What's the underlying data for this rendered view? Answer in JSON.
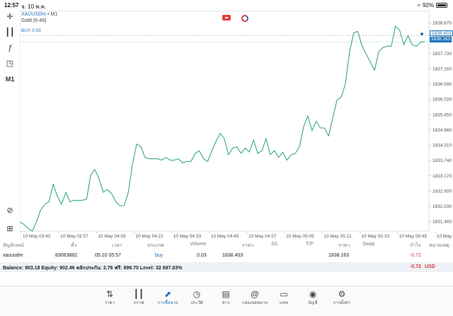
{
  "status": {
    "time": "12:57",
    "date": "จ. 10 พ.ค.",
    "battery": "92%"
  },
  "toolbar": {
    "period_label": "M1"
  },
  "chart_header": {
    "symbol": "XAUUSDm",
    "timeframe": "• M1",
    "subtitle": "Gold (6-49)"
  },
  "buy_line_label": "BUY 0.03",
  "price_tags": {
    "buy": "1838.403",
    "bid": "1838.163"
  },
  "chart_data": {
    "type": "line",
    "color": "#3aaa7a",
    "y_ticks": [
      "1838.870",
      "1838.403",
      "1837.730",
      "1837.160",
      "1836.590",
      "1836.020",
      "1835.450",
      "1834.880",
      "1834.310",
      "1833.740",
      "1833.170",
      "1832.600",
      "1832.030",
      "1831.460"
    ],
    "x_ticks": [
      "10 May 03:45",
      "10 May 03:57",
      "10 May 04:09",
      "10 May 04:21",
      "10 May 04:33",
      "10 May 04:45",
      "10 May 04:57",
      "10 May 05:09",
      "10 May 05:21",
      "10 May 05:33",
      "10 May 05:45",
      "10 May 05:57"
    ],
    "ylim": [
      1831.1,
      1839.3
    ],
    "values": [
      1831.45,
      1831.35,
      1831.2,
      1831.1,
      1831.45,
      1831.9,
      1832.1,
      1832.2,
      1832.85,
      1832.4,
      1832.1,
      1832.55,
      1832.2,
      1832.25,
      1832.25,
      1832.25,
      1832.3,
      1833.2,
      1833.4,
      1833.05,
      1832.55,
      1832.65,
      1832.5,
      1832.2,
      1832.05,
      1832.05,
      1832.55,
      1833.6,
      1834.35,
      1834.25,
      1833.85,
      1833.8,
      1833.8,
      1833.8,
      1833.75,
      1833.85,
      1833.75,
      1833.75,
      1833.8,
      1833.65,
      1833.7,
      1833.7,
      1834.0,
      1834.1,
      1833.8,
      1833.7,
      1834.1,
      1834.45,
      1834.75,
      1834.55,
      1833.95,
      1834.2,
      1834.25,
      1834.0,
      1834.2,
      1834.05,
      1834.5,
      1834.0,
      1834.1,
      1834.55,
      1833.95,
      1834.1,
      1833.85,
      1834.05,
      1833.75,
      1833.95,
      1834.0,
      1834.25,
      1835.0,
      1835.4,
      1834.85,
      1835.2,
      1834.95,
      1834.95,
      1834.65,
      1835.35,
      1836.0,
      1836.1,
      1836.6,
      1837.8,
      1838.5,
      1838.55,
      1838.0,
      1837.7,
      1837.4,
      1837.1,
      1837.8,
      1837.95,
      1838.0,
      1838.0,
      1838.75,
      1838.6,
      1838.05,
      1838.4,
      1838.05,
      1838.0,
      1838.15,
      1838.16
    ]
  },
  "table": {
    "headers": [
      "สัญลักษณ์",
      "ตั๋ว",
      "เวลา",
      "ประเภท",
      "Volume",
      "ราคา",
      "S/L",
      "T/P",
      "ราคา",
      "Swap",
      "กำไร",
      "หมายเหตุ"
    ],
    "row": {
      "symbol": "xauusdm",
      "ticket": "83063882",
      "time": "05.10 05:57",
      "type": "buy",
      "volume": "0.03",
      "open_price": "1838.403",
      "sl": "",
      "tp": "",
      "price": "1838.163",
      "swap": "",
      "profit": "-0.72",
      "comment": ""
    },
    "summary": {
      "text": "Balance: 903.18 Equity: 902.46 หลักประกัน: 2.76 ฟรี: 899.70 Level: 32 697.83%",
      "profit": "-0.72",
      "currency": "USD"
    }
  },
  "nav": [
    {
      "label": "ราคา",
      "icon": "quotes-icon"
    },
    {
      "label": "กราฟ",
      "icon": "chart-candles-icon"
    },
    {
      "label": "การซื้อขาย",
      "icon": "trade-icon",
      "active": true
    },
    {
      "label": "ประวัติ",
      "icon": "history-icon"
    },
    {
      "label": "ข่าว",
      "icon": "news-icon"
    },
    {
      "label": "กล่องจดหมาย",
      "icon": "mailbox-icon"
    },
    {
      "label": "แชท",
      "icon": "chat-icon"
    },
    {
      "label": "บัญชี",
      "icon": "account-icon"
    },
    {
      "label": "การตั้งค่า",
      "icon": "settings-icon"
    }
  ]
}
